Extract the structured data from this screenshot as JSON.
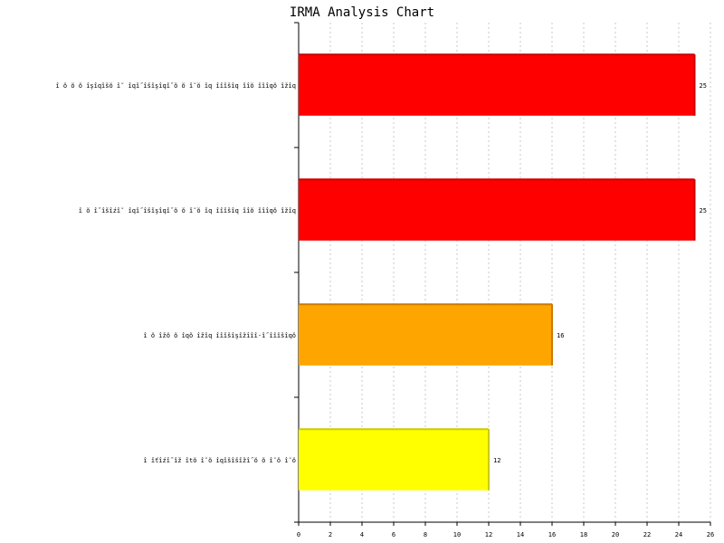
{
  "chart_data": {
    "type": "bar",
    "orientation": "horizontal",
    "title": "IRMA Analysis Chart",
    "xlabel": "",
    "ylabel": "",
    "xlim": [
      0,
      26
    ],
    "x_ticks": [
      "0",
      "2",
      "4",
      "6",
      "8",
      "10",
      "12",
      "14",
      "16",
      "18",
      "20",
      "22",
      "24",
      "26"
    ],
    "grid": "vertical-dotted",
    "categories": [
      "î ŏ ŏ ŏ îşîqîšŏ î˘ îqî˝îšîşîqî˝ŏ ŏ î˘ŏ îq îîîšîq îîŏ îîîqŏ îžîq",
      "î ŏ î˝îšîźî˘ îqî˝îšîşîqî˝ŏ ŏ î˘ŏ îq îîîšîq îîŏ îîîqŏ îžîq",
      "î ŏ îžŏ ŏ îqŏ îžîq îîîšîşîžîîî-î˝îîîšîqŏ",
      "î îťîźî˝îž îtŏ î˘ŏ îqîšîšîžî˝ŏ ŏ î˘ŏ î˘ŏ"
    ],
    "values": [
      25,
      25,
      16,
      12
    ],
    "value_labels": [
      "25",
      "25",
      "16",
      "12"
    ],
    "colors": [
      "#ff0000",
      "#ff0000",
      "#ffa500",
      "#ffff00"
    ],
    "edge_colors": [
      "#cc0000",
      "#cc0000",
      "#cc7a00",
      "#cccc00"
    ]
  }
}
